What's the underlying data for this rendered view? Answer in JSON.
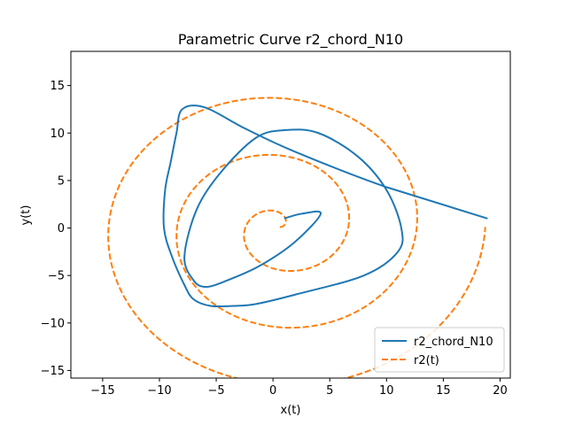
{
  "chart_data": {
    "type": "line",
    "title": "Parametric Curve r2_chord_N10",
    "xlabel": "x(t)",
    "ylabel": "y(t)",
    "xlim": [
      -17.8,
      20.9
    ],
    "ylim": [
      -15.8,
      18.6
    ],
    "xticks": [
      -15,
      -10,
      -5,
      0,
      5,
      10,
      15,
      20
    ],
    "yticks": [
      -15,
      -10,
      -5,
      0,
      5,
      10,
      15
    ],
    "legend_position": "lower-right",
    "grid": false,
    "series": [
      {
        "name": "r2_chord_N10",
        "color": "#1f77b4",
        "style": "solid",
        "x": [
          1.0,
          2.5,
          4.2,
          1.9,
          -1.2,
          -4.0,
          -5.9,
          -7.0,
          -7.8,
          -6.7,
          -4.5,
          -1.5,
          1.0,
          4.0,
          7.5,
          10.0,
          11.3,
          11.0,
          8.0,
          2.0,
          -1.5,
          -3.5,
          -5.5,
          -7.0,
          -7.8,
          -8.9,
          -9.6,
          -9.5,
          -9.0,
          -8.5,
          -8.0,
          -6.0,
          -2.5,
          2.0,
          10.0,
          18.9
        ],
        "y": [
          1.0,
          1.5,
          1.5,
          -1.5,
          -4.0,
          -5.5,
          -6.2,
          -5.5,
          -3.0,
          2.0,
          6.0,
          9.5,
          10.3,
          10.0,
          7.5,
          4.0,
          0.0,
          -2.5,
          -5.0,
          -7.0,
          -8.0,
          -8.2,
          -8.2,
          -7.5,
          -6.0,
          -3.0,
          0.0,
          4.0,
          7.0,
          10.0,
          12.5,
          12.7,
          10.5,
          8.0,
          4.3,
          1.0
        ]
      },
      {
        "name": "r2(t)",
        "color": "#ff7f0e",
        "style": "dashed",
        "spiral": {
          "t_max": 18.85,
          "r_scale": 0.96,
          "cx": 0.6,
          "cy": 0.1
        }
      }
    ]
  }
}
